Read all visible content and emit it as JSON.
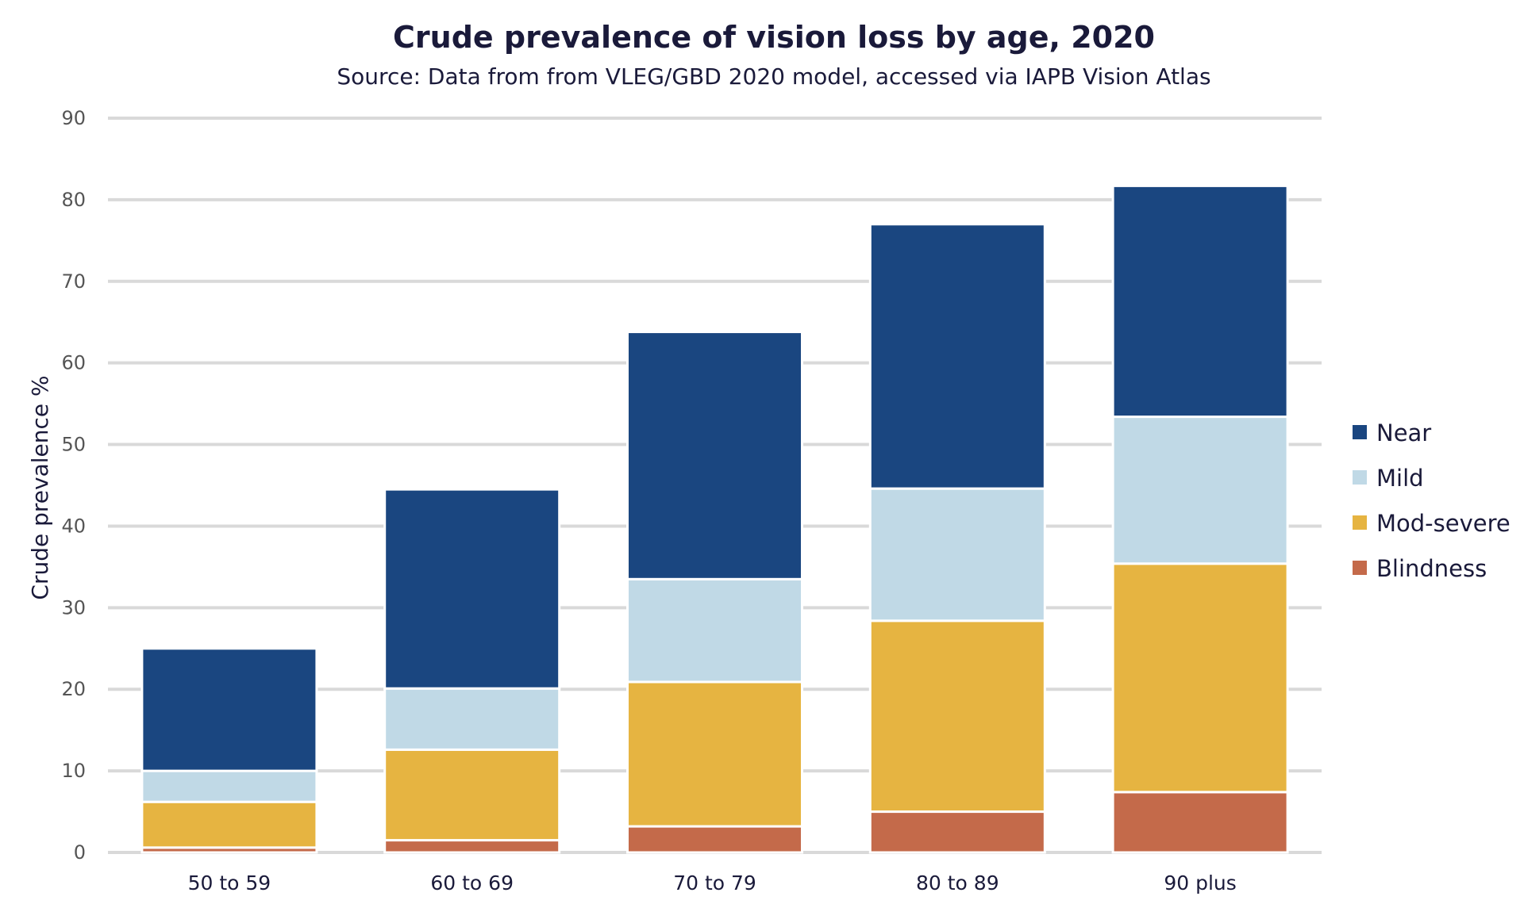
{
  "chart_data": {
    "type": "bar",
    "stacked": true,
    "title": "Crude prevalence of vision loss by age, 2020",
    "subtitle": "Source: Data from from VLEG/GBD 2020 model, accessed via IAPB Vision Atlas",
    "xlabel": "",
    "ylabel": "Crude prevalence %",
    "ylim": [
      0,
      90
    ],
    "yticks": [
      0,
      10,
      20,
      30,
      40,
      50,
      60,
      70,
      80,
      90
    ],
    "grid": true,
    "legend_position": "right",
    "categories": [
      "50 to 59",
      "60 to 69",
      "70 to 79",
      "80 to 89",
      "90 plus"
    ],
    "series": [
      {
        "name": "Blindness",
        "color": "#c46a4a",
        "values": [
          0.6,
          1.5,
          3.2,
          5.0,
          7.4
        ]
      },
      {
        "name": "Mod-severe",
        "color": "#e6b441",
        "values": [
          5.6,
          11.1,
          17.7,
          23.4,
          28.0
        ]
      },
      {
        "name": "Mild",
        "color": "#c0d9e6",
        "values": [
          3.8,
          7.5,
          12.6,
          16.2,
          18.0
        ]
      },
      {
        "name": "Near",
        "color": "#1a4680",
        "values": [
          15.0,
          24.4,
          30.3,
          32.4,
          28.3
        ]
      }
    ],
    "legend_order": [
      "Near",
      "Mild",
      "Mod-severe",
      "Blindness"
    ]
  }
}
